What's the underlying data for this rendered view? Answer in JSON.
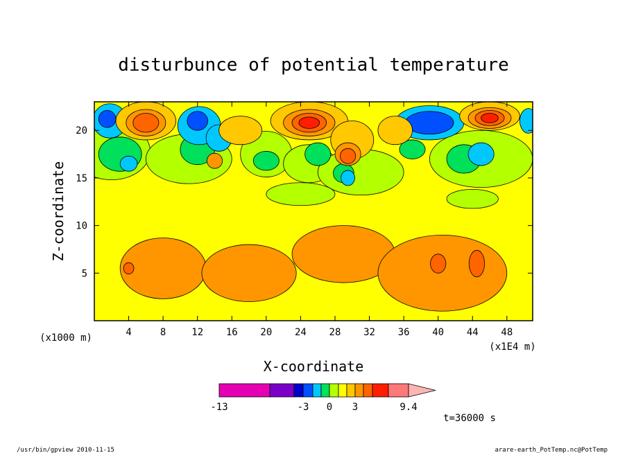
{
  "chart_data": {
    "type": "heatmap",
    "title": "disturbunce of potential temperature",
    "xlabel": "X-coordinate",
    "ylabel": "Z-coordinate",
    "x_unit_left": "(x1000 m)",
    "x_unit_right": "(x1E4 m)",
    "xlim": [
      0,
      51
    ],
    "ylim": [
      0,
      23
    ],
    "x_ticks": [
      "4",
      "8",
      "12",
      "16",
      "20",
      "24",
      "28",
      "32",
      "36",
      "40",
      "44",
      "48"
    ],
    "x_tick_values": [
      4,
      8,
      12,
      16,
      20,
      24,
      28,
      32,
      36,
      40,
      44,
      48
    ],
    "y_ticks": [
      "5",
      "10",
      "15",
      "20"
    ],
    "y_tick_values": [
      5,
      10,
      15,
      20
    ],
    "colorbar": {
      "labels": [
        "-13",
        "-3",
        "0",
        "3",
        "9.4"
      ],
      "colors": [
        "#e600b4",
        "#7a00c8",
        "#0000cc",
        "#0050ff",
        "#00c8ff",
        "#00e05a",
        "#b4ff00",
        "#ffff00",
        "#ffc800",
        "#ff9600",
        "#ff6400",
        "#ff1e00",
        "#ff7878",
        "#ffb4b4"
      ]
    },
    "regions": [
      {
        "z": 2,
        "x": 8,
        "y": 5.5,
        "rx": 5,
        "ry": 3.2
      },
      {
        "z": 2,
        "x": 18,
        "y": 5,
        "rx": 5.5,
        "ry": 3
      },
      {
        "z": 2,
        "x": 29,
        "y": 7,
        "rx": 6,
        "ry": 3
      },
      {
        "z": 2,
        "x": 40.5,
        "y": 5,
        "rx": 7.5,
        "ry": 4
      },
      {
        "z": 3,
        "x": 4,
        "y": 5.5,
        "rx": 0.6,
        "ry": 0.6
      },
      {
        "z": 3,
        "x": 40,
        "y": 6,
        "rx": 0.9,
        "ry": 1
      },
      {
        "z": 3,
        "x": 44.5,
        "y": 6,
        "rx": 0.9,
        "ry": 1.4
      },
      {
        "z": -1,
        "x": 2,
        "y": 17.8,
        "rx": 4.5,
        "ry": 3
      },
      {
        "z": -1,
        "x": 11,
        "y": 17,
        "rx": 5,
        "ry": 2.6
      },
      {
        "z": -1,
        "x": 20,
        "y": 17.5,
        "rx": 3,
        "ry": 2.4
      },
      {
        "z": -1,
        "x": 25,
        "y": 16.5,
        "rx": 3,
        "ry": 2
      },
      {
        "z": -1,
        "x": 31,
        "y": 15.6,
        "rx": 5,
        "ry": 2.4
      },
      {
        "z": -1,
        "x": 45,
        "y": 17,
        "rx": 6,
        "ry": 3
      },
      {
        "z": -1,
        "x": 24,
        "y": 13.3,
        "rx": 4,
        "ry": 1.2
      },
      {
        "z": -1,
        "x": 44,
        "y": 12.8,
        "rx": 3,
        "ry": 1
      },
      {
        "z": -2,
        "x": 3,
        "y": 17.5,
        "rx": 2.5,
        "ry": 1.8
      },
      {
        "z": -2,
        "x": 12,
        "y": 18,
        "rx": 2,
        "ry": 1.6
      },
      {
        "z": -2,
        "x": 20,
        "y": 16.8,
        "rx": 1.5,
        "ry": 1
      },
      {
        "z": -2,
        "x": 26,
        "y": 17.5,
        "rx": 1.5,
        "ry": 1.2
      },
      {
        "z": -2,
        "x": 29,
        "y": 15.5,
        "rx": 1.2,
        "ry": 1
      },
      {
        "z": -2,
        "x": 37,
        "y": 18,
        "rx": 1.5,
        "ry": 1
      },
      {
        "z": -2,
        "x": 43,
        "y": 17,
        "rx": 2,
        "ry": 1.5
      },
      {
        "z": -3,
        "x": 1.8,
        "y": 21,
        "rx": 2,
        "ry": 1.8
      },
      {
        "z": -3,
        "x": 12.2,
        "y": 20.5,
        "rx": 2.5,
        "ry": 2
      },
      {
        "z": -3,
        "x": 14.5,
        "y": 19.2,
        "rx": 1.5,
        "ry": 1.4
      },
      {
        "z": -3,
        "x": 39,
        "y": 20.8,
        "rx": 4,
        "ry": 1.8
      },
      {
        "z": -3,
        "x": 45,
        "y": 17.5,
        "rx": 1.5,
        "ry": 1.2
      },
      {
        "z": -3,
        "x": 4,
        "y": 16.5,
        "rx": 1,
        "ry": 0.8
      },
      {
        "z": -3,
        "x": 29.5,
        "y": 15,
        "rx": 0.8,
        "ry": 0.8
      },
      {
        "z": -3,
        "x": 50.5,
        "y": 21,
        "rx": 1,
        "ry": 1.3
      },
      {
        "z": -4,
        "x": 39,
        "y": 20.8,
        "rx": 2.8,
        "ry": 1.2
      },
      {
        "z": -4,
        "x": 12,
        "y": 21,
        "rx": 1.2,
        "ry": 1
      },
      {
        "z": -4,
        "x": 1.5,
        "y": 21.2,
        "rx": 1,
        "ry": 0.9
      },
      {
        "z": 1,
        "x": 6,
        "y": 21,
        "rx": 3.5,
        "ry": 2
      },
      {
        "z": 1,
        "x": 25,
        "y": 21,
        "rx": 4.5,
        "ry": 2
      },
      {
        "z": 1,
        "x": 30,
        "y": 19,
        "rx": 2.5,
        "ry": 2
      },
      {
        "z": 1,
        "x": 46,
        "y": 21.5,
        "rx": 3.5,
        "ry": 1.5
      },
      {
        "z": 1,
        "x": 17,
        "y": 20,
        "rx": 2.5,
        "ry": 1.5
      },
      {
        "z": 1,
        "x": 35,
        "y": 20,
        "rx": 2,
        "ry": 1.5
      },
      {
        "z": 2,
        "x": 6,
        "y": 20.8,
        "rx": 2.3,
        "ry": 1.4
      },
      {
        "z": 2,
        "x": 25,
        "y": 20.8,
        "rx": 3,
        "ry": 1.4
      },
      {
        "z": 2,
        "x": 46,
        "y": 21.3,
        "rx": 2.5,
        "ry": 1.1
      },
      {
        "z": 2,
        "x": 29.5,
        "y": 17.5,
        "rx": 1.5,
        "ry": 1.2
      },
      {
        "z": 2,
        "x": 14,
        "y": 16.8,
        "rx": 0.9,
        "ry": 0.8
      },
      {
        "z": 3,
        "x": 6,
        "y": 20.8,
        "rx": 1.5,
        "ry": 1
      },
      {
        "z": 3,
        "x": 25,
        "y": 20.8,
        "rx": 2,
        "ry": 1
      },
      {
        "z": 3,
        "x": 46,
        "y": 21.3,
        "rx": 1.7,
        "ry": 0.8
      },
      {
        "z": 3,
        "x": 29.5,
        "y": 17.3,
        "rx": 0.9,
        "ry": 0.8
      },
      {
        "z": 4,
        "x": 25,
        "y": 20.8,
        "rx": 1.2,
        "ry": 0.6
      },
      {
        "z": 4,
        "x": 46,
        "y": 21.3,
        "rx": 1,
        "ry": 0.5
      }
    ],
    "annotation_time": "t=36000 s"
  },
  "footer": {
    "left": "/usr/bin/gpview  2010-11-15",
    "right": "arare-earth_PotTemp.nc@PotTemp"
  }
}
